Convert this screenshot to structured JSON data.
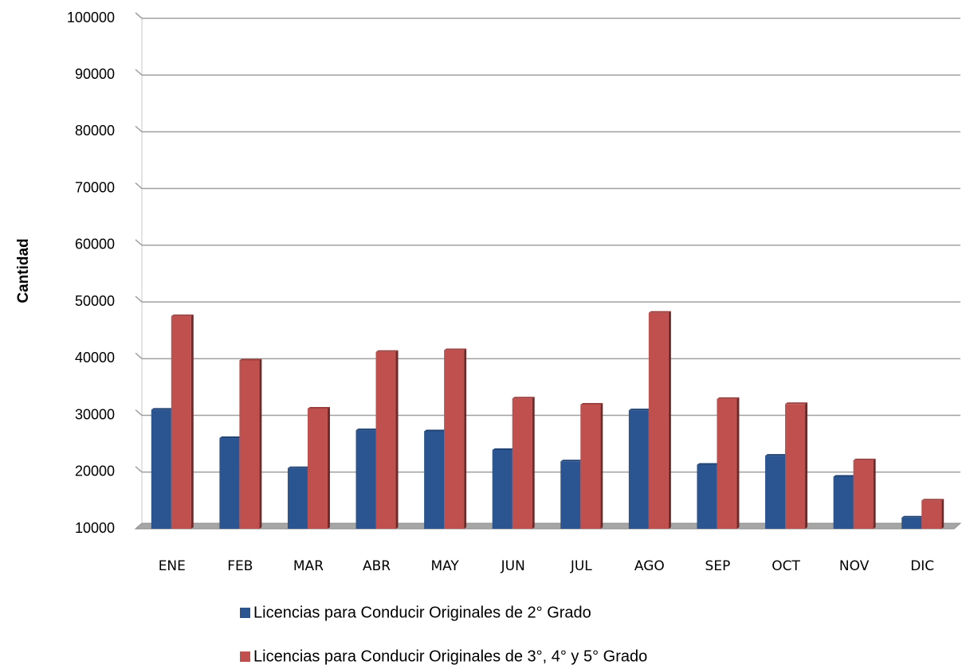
{
  "chart_data": {
    "type": "bar",
    "ylabel": "Cantidad",
    "categories": [
      "ENE",
      "FEB",
      "MAR",
      "ABR",
      "MAY",
      "JUN",
      "JUL",
      "AGO",
      "SEP",
      "OCT",
      "NOV",
      "DIC"
    ],
    "series": [
      {
        "name": "Licencias para Conducir Originales de 2° Grado",
        "color": "#2b5591",
        "values": [
          31000,
          26000,
          20700,
          27400,
          27200,
          23900,
          21900,
          30900,
          21300,
          22900,
          19200,
          12000
        ]
      },
      {
        "name": "Licencias para Conducir Originales de 3°, 4° y 5° Grado",
        "color": "#c0504d",
        "values": [
          47500,
          39700,
          31200,
          41200,
          41500,
          33000,
          31900,
          48100,
          32900,
          32000,
          22100,
          15000
        ]
      }
    ],
    "ylim": [
      10000,
      100000
    ],
    "yticks": [
      10000,
      20000,
      30000,
      40000,
      50000,
      60000,
      70000,
      80000,
      90000,
      100000
    ],
    "grid": true,
    "legend": "bottom"
  }
}
